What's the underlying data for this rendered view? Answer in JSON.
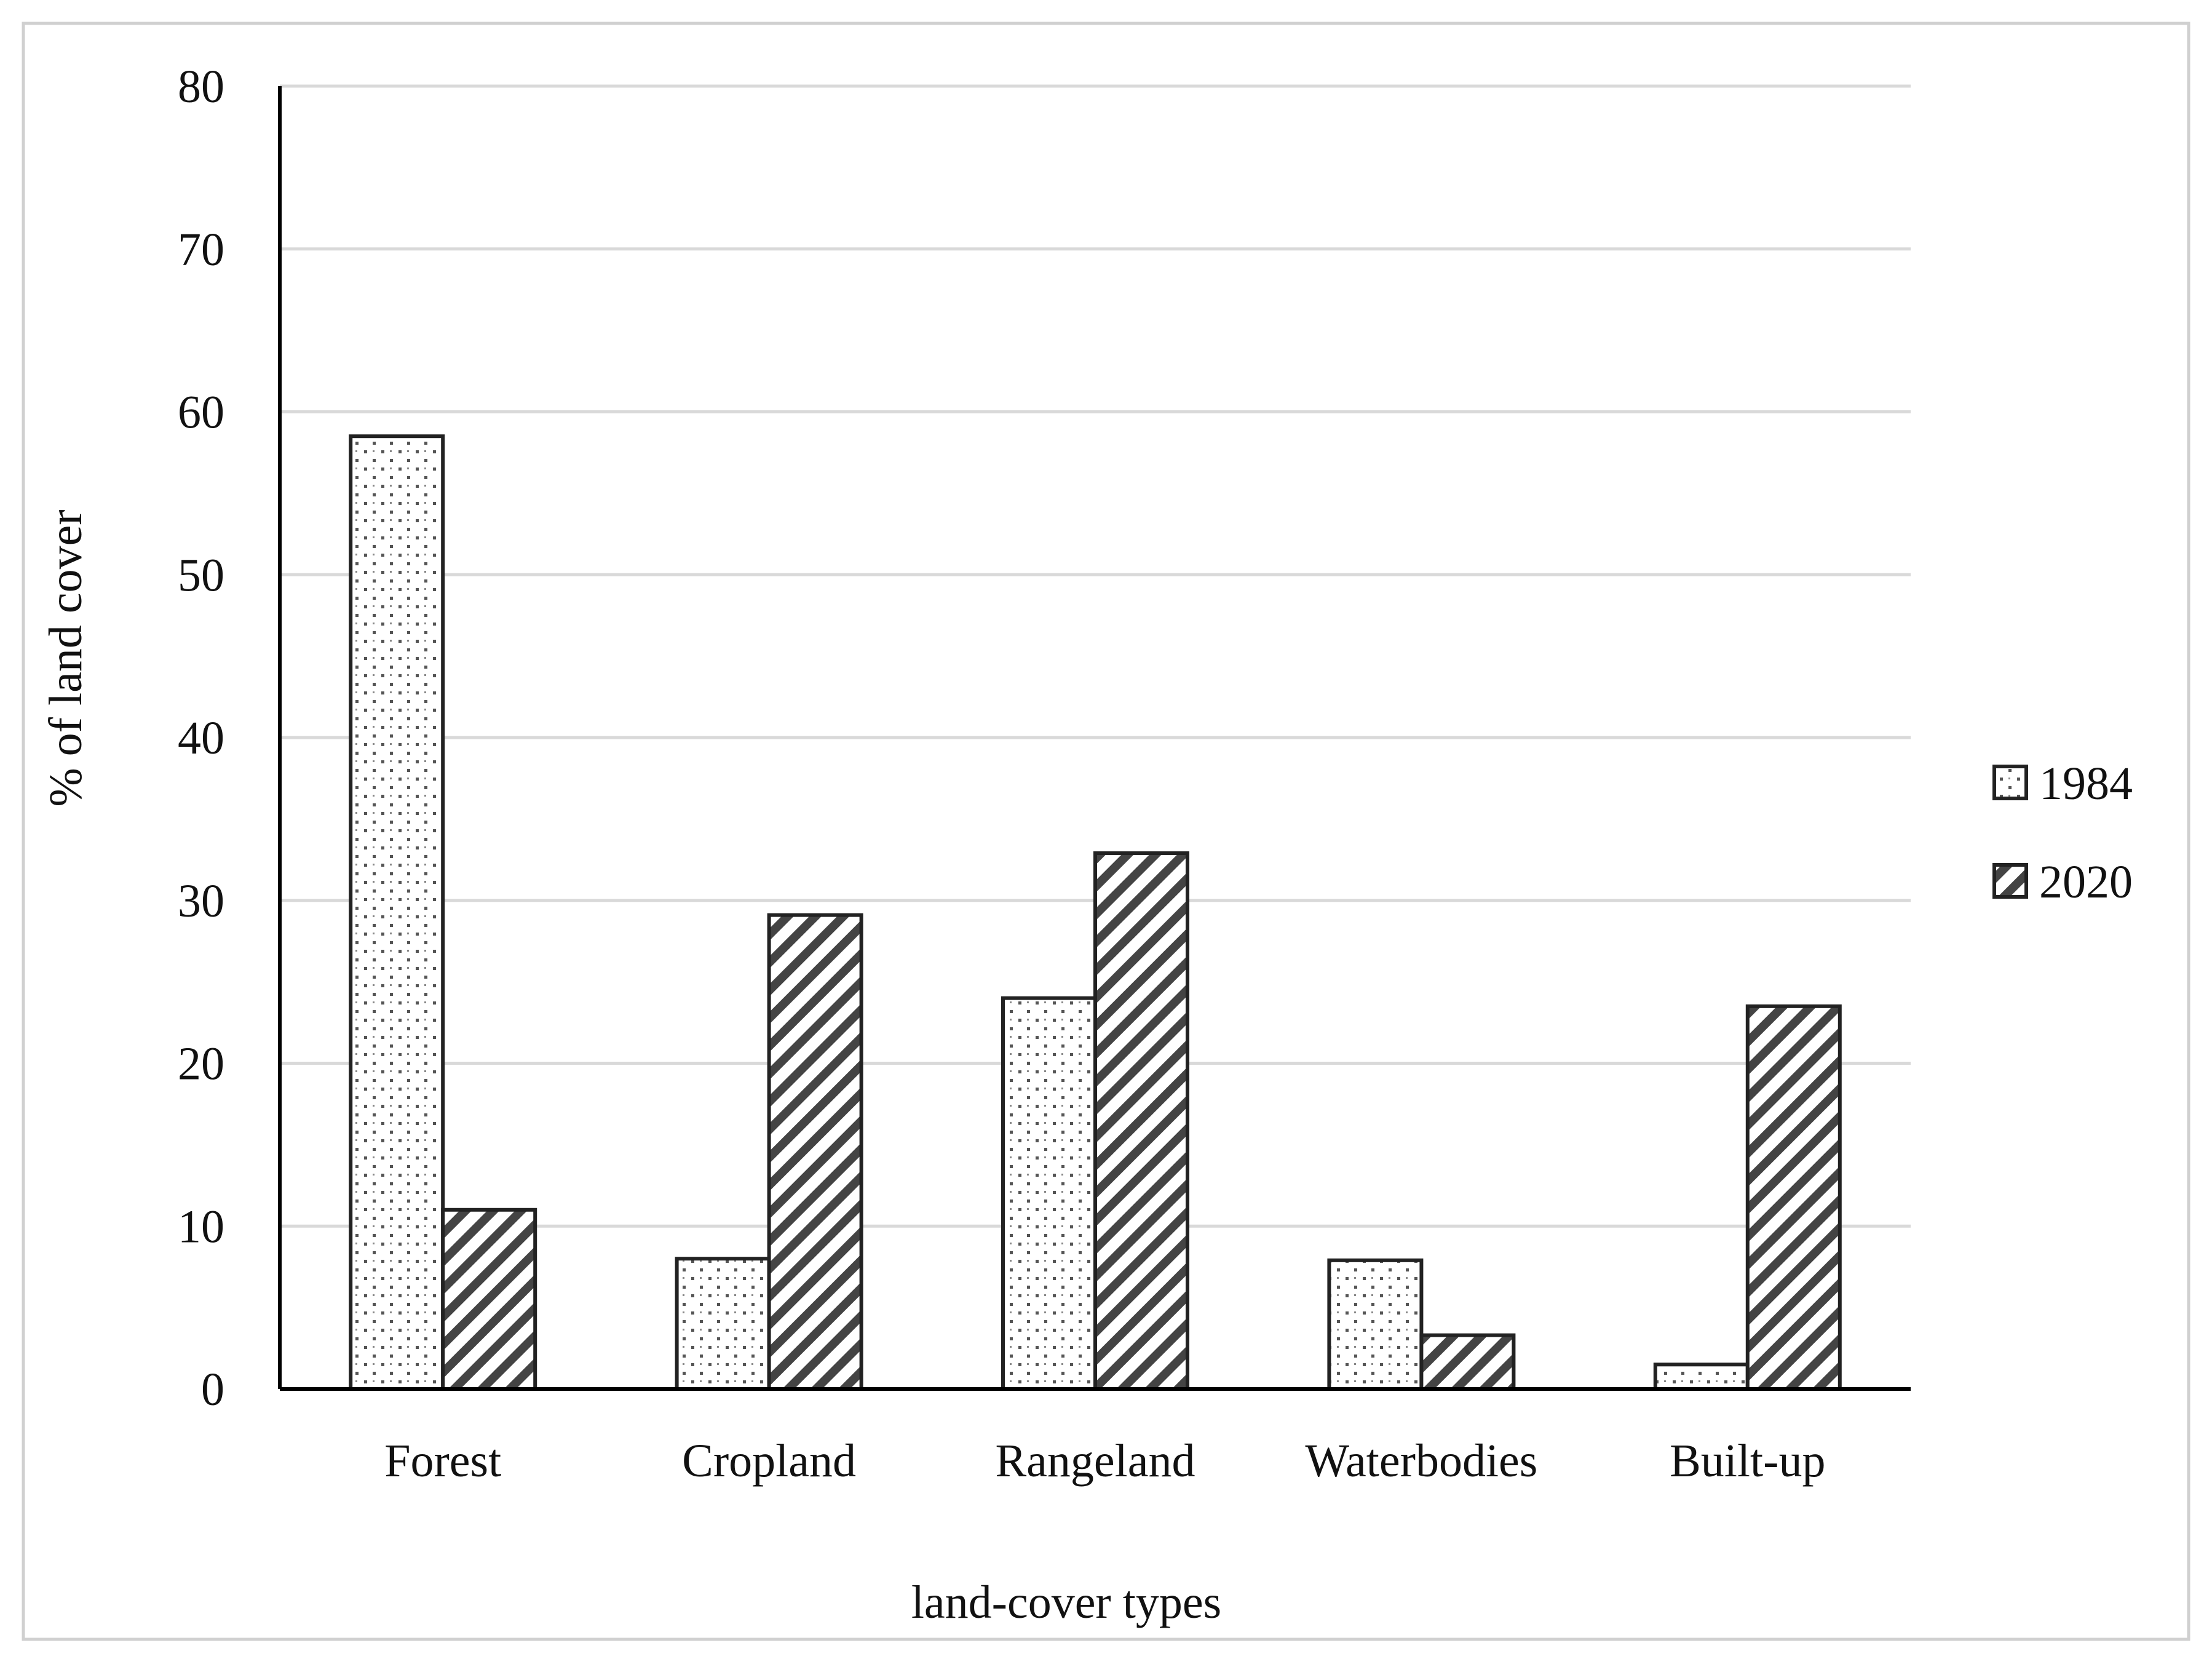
{
  "chart_data": {
    "type": "bar",
    "xlabel": "land-cover types",
    "ylabel": "% of land cover",
    "ylim": [
      0,
      80
    ],
    "yticks": [
      0,
      10,
      20,
      30,
      40,
      50,
      60,
      70,
      80
    ],
    "grid": true,
    "legend_position": "right",
    "categories": [
      "Forest",
      "Cropland",
      "Rangeland",
      "Waterbodies",
      "Built-up"
    ],
    "series": [
      {
        "name": "1984",
        "pattern": "dotted",
        "values": [
          58.5,
          8.0,
          24.0,
          7.9,
          1.5
        ]
      },
      {
        "name": "2020",
        "pattern": "diagonal-hatch",
        "values": [
          11.0,
          29.1,
          32.9,
          3.3,
          23.5
        ]
      }
    ],
    "colors": {
      "bar_stroke": "#222222",
      "grid": "#d9d9d9",
      "axis": "#000000",
      "pattern": "#444444",
      "frame": "#d0d0d0"
    }
  }
}
